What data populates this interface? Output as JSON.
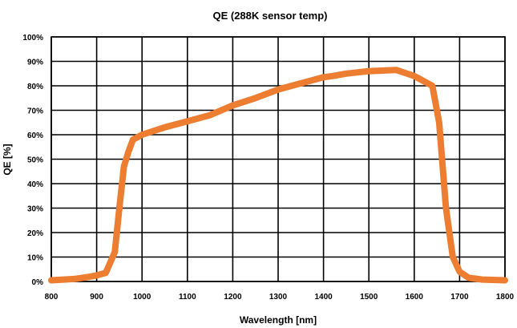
{
  "chart_data": {
    "type": "line",
    "title": "QE (288K sensor temp)",
    "xlabel": "Wavelength [nm]",
    "ylabel": "QE [%]",
    "xlim": [
      800,
      1800
    ],
    "ylim": [
      0,
      100
    ],
    "xticks": [
      800,
      900,
      1000,
      1100,
      1200,
      1300,
      1400,
      1500,
      1600,
      1700,
      1800
    ],
    "xtick_labels": [
      "800",
      "900",
      "1000",
      "1100",
      "1200",
      "1300",
      "1400",
      "1500",
      "1600",
      "1700",
      "1800"
    ],
    "yticks": [
      0,
      10,
      20,
      30,
      40,
      50,
      60,
      70,
      80,
      90,
      100
    ],
    "ytick_labels": [
      "0%",
      "10%",
      "20%",
      "30%",
      "40%",
      "50%",
      "60%",
      "70%",
      "80%",
      "90%",
      "100%"
    ],
    "grid": true,
    "color": "#ed7d31",
    "series": [
      {
        "name": "QE",
        "x": [
          800,
          850,
          880,
          900,
          920,
          940,
          950,
          960,
          970,
          980,
          1000,
          1050,
          1100,
          1150,
          1200,
          1250,
          1300,
          1350,
          1400,
          1420,
          1450,
          1500,
          1560,
          1600,
          1640,
          1655,
          1670,
          1685,
          1700,
          1720,
          1750,
          1800
        ],
        "y": [
          0.5,
          1,
          1.8,
          2.5,
          3.5,
          12,
          30,
          47,
          53,
          58,
          60,
          63,
          65.5,
          68,
          72,
          75,
          78.5,
          81,
          83.5,
          84,
          85,
          86,
          86.5,
          84,
          80,
          65,
          30,
          10,
          4,
          1.5,
          0.8,
          0.5
        ]
      }
    ]
  }
}
